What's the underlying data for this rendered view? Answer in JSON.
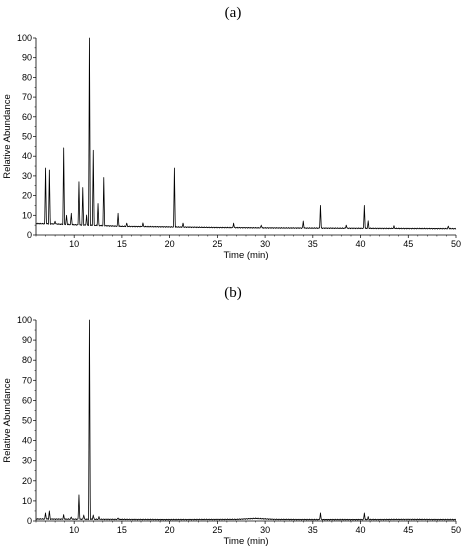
{
  "figure": {
    "panels": [
      "(a)",
      "(b)"
    ]
  },
  "chart_data": [
    {
      "type": "line",
      "panel": "(a)",
      "xlabel": "Time (min)",
      "ylabel": "Relative Abundance",
      "xlim": [
        6,
        50
      ],
      "ylim": [
        0,
        100
      ],
      "x_ticks": [
        10,
        15,
        20,
        25,
        30,
        35,
        40,
        45,
        50
      ],
      "y_ticks": [
        0,
        10,
        20,
        30,
        40,
        50,
        60,
        70,
        80,
        90,
        100
      ],
      "baseline": [
        [
          6,
          5.8
        ],
        [
          8,
          5.6
        ],
        [
          10,
          5.2
        ],
        [
          12,
          4.9
        ],
        [
          15,
          4.4
        ],
        [
          20,
          4.1
        ],
        [
          25,
          3.8
        ],
        [
          30,
          3.6
        ],
        [
          35,
          3.5
        ],
        [
          40,
          3.4
        ],
        [
          45,
          3.3
        ],
        [
          50,
          3.2
        ]
      ],
      "peaks": [
        {
          "x": 7.0,
          "y": 34
        },
        {
          "x": 7.4,
          "y": 33
        },
        {
          "x": 8.0,
          "y": 7
        },
        {
          "x": 8.9,
          "y": 44
        },
        {
          "x": 9.2,
          "y": 10
        },
        {
          "x": 9.7,
          "y": 11
        },
        {
          "x": 10.5,
          "y": 27
        },
        {
          "x": 10.9,
          "y": 24
        },
        {
          "x": 11.3,
          "y": 10
        },
        {
          "x": 11.6,
          "y": 100
        },
        {
          "x": 12.0,
          "y": 43
        },
        {
          "x": 12.5,
          "y": 16
        },
        {
          "x": 13.1,
          "y": 29
        },
        {
          "x": 14.6,
          "y": 11
        },
        {
          "x": 15.5,
          "y": 6
        },
        {
          "x": 17.2,
          "y": 6
        },
        {
          "x": 20.5,
          "y": 34
        },
        {
          "x": 21.4,
          "y": 6
        },
        {
          "x": 26.7,
          "y": 6
        },
        {
          "x": 29.6,
          "y": 5
        },
        {
          "x": 34.0,
          "y": 7
        },
        {
          "x": 35.8,
          "y": 15
        },
        {
          "x": 38.5,
          "y": 5
        },
        {
          "x": 40.4,
          "y": 15
        },
        {
          "x": 40.8,
          "y": 7
        },
        {
          "x": 43.5,
          "y": 4.5
        },
        {
          "x": 49.2,
          "y": 4.5
        }
      ]
    },
    {
      "type": "line",
      "panel": "(b)",
      "xlabel": "Time (min)",
      "ylabel": "Relative Abundance",
      "xlim": [
        6,
        50
      ],
      "ylim": [
        0,
        100
      ],
      "x_ticks": [
        10,
        15,
        20,
        25,
        30,
        35,
        40,
        45,
        50
      ],
      "y_ticks": [
        0,
        10,
        20,
        30,
        40,
        50,
        60,
        70,
        80,
        90,
        100
      ],
      "baseline": [
        [
          6,
          1.0
        ],
        [
          10,
          0.9
        ],
        [
          15,
          0.8
        ],
        [
          20,
          0.7
        ],
        [
          27,
          0.8
        ],
        [
          29,
          1.3
        ],
        [
          31,
          0.8
        ],
        [
          35,
          0.7
        ],
        [
          40,
          0.7
        ],
        [
          45,
          0.8
        ],
        [
          50,
          0.7
        ]
      ],
      "peaks": [
        {
          "x": 7.0,
          "y": 4
        },
        {
          "x": 7.4,
          "y": 5
        },
        {
          "x": 8.9,
          "y": 3
        },
        {
          "x": 9.7,
          "y": 2
        },
        {
          "x": 10.5,
          "y": 13
        },
        {
          "x": 11.0,
          "y": 3
        },
        {
          "x": 11.6,
          "y": 100
        },
        {
          "x": 12.0,
          "y": 3
        },
        {
          "x": 12.6,
          "y": 2
        },
        {
          "x": 14.6,
          "y": 1.5
        },
        {
          "x": 35.8,
          "y": 4
        },
        {
          "x": 40.4,
          "y": 4
        },
        {
          "x": 40.8,
          "y": 2
        }
      ]
    }
  ]
}
